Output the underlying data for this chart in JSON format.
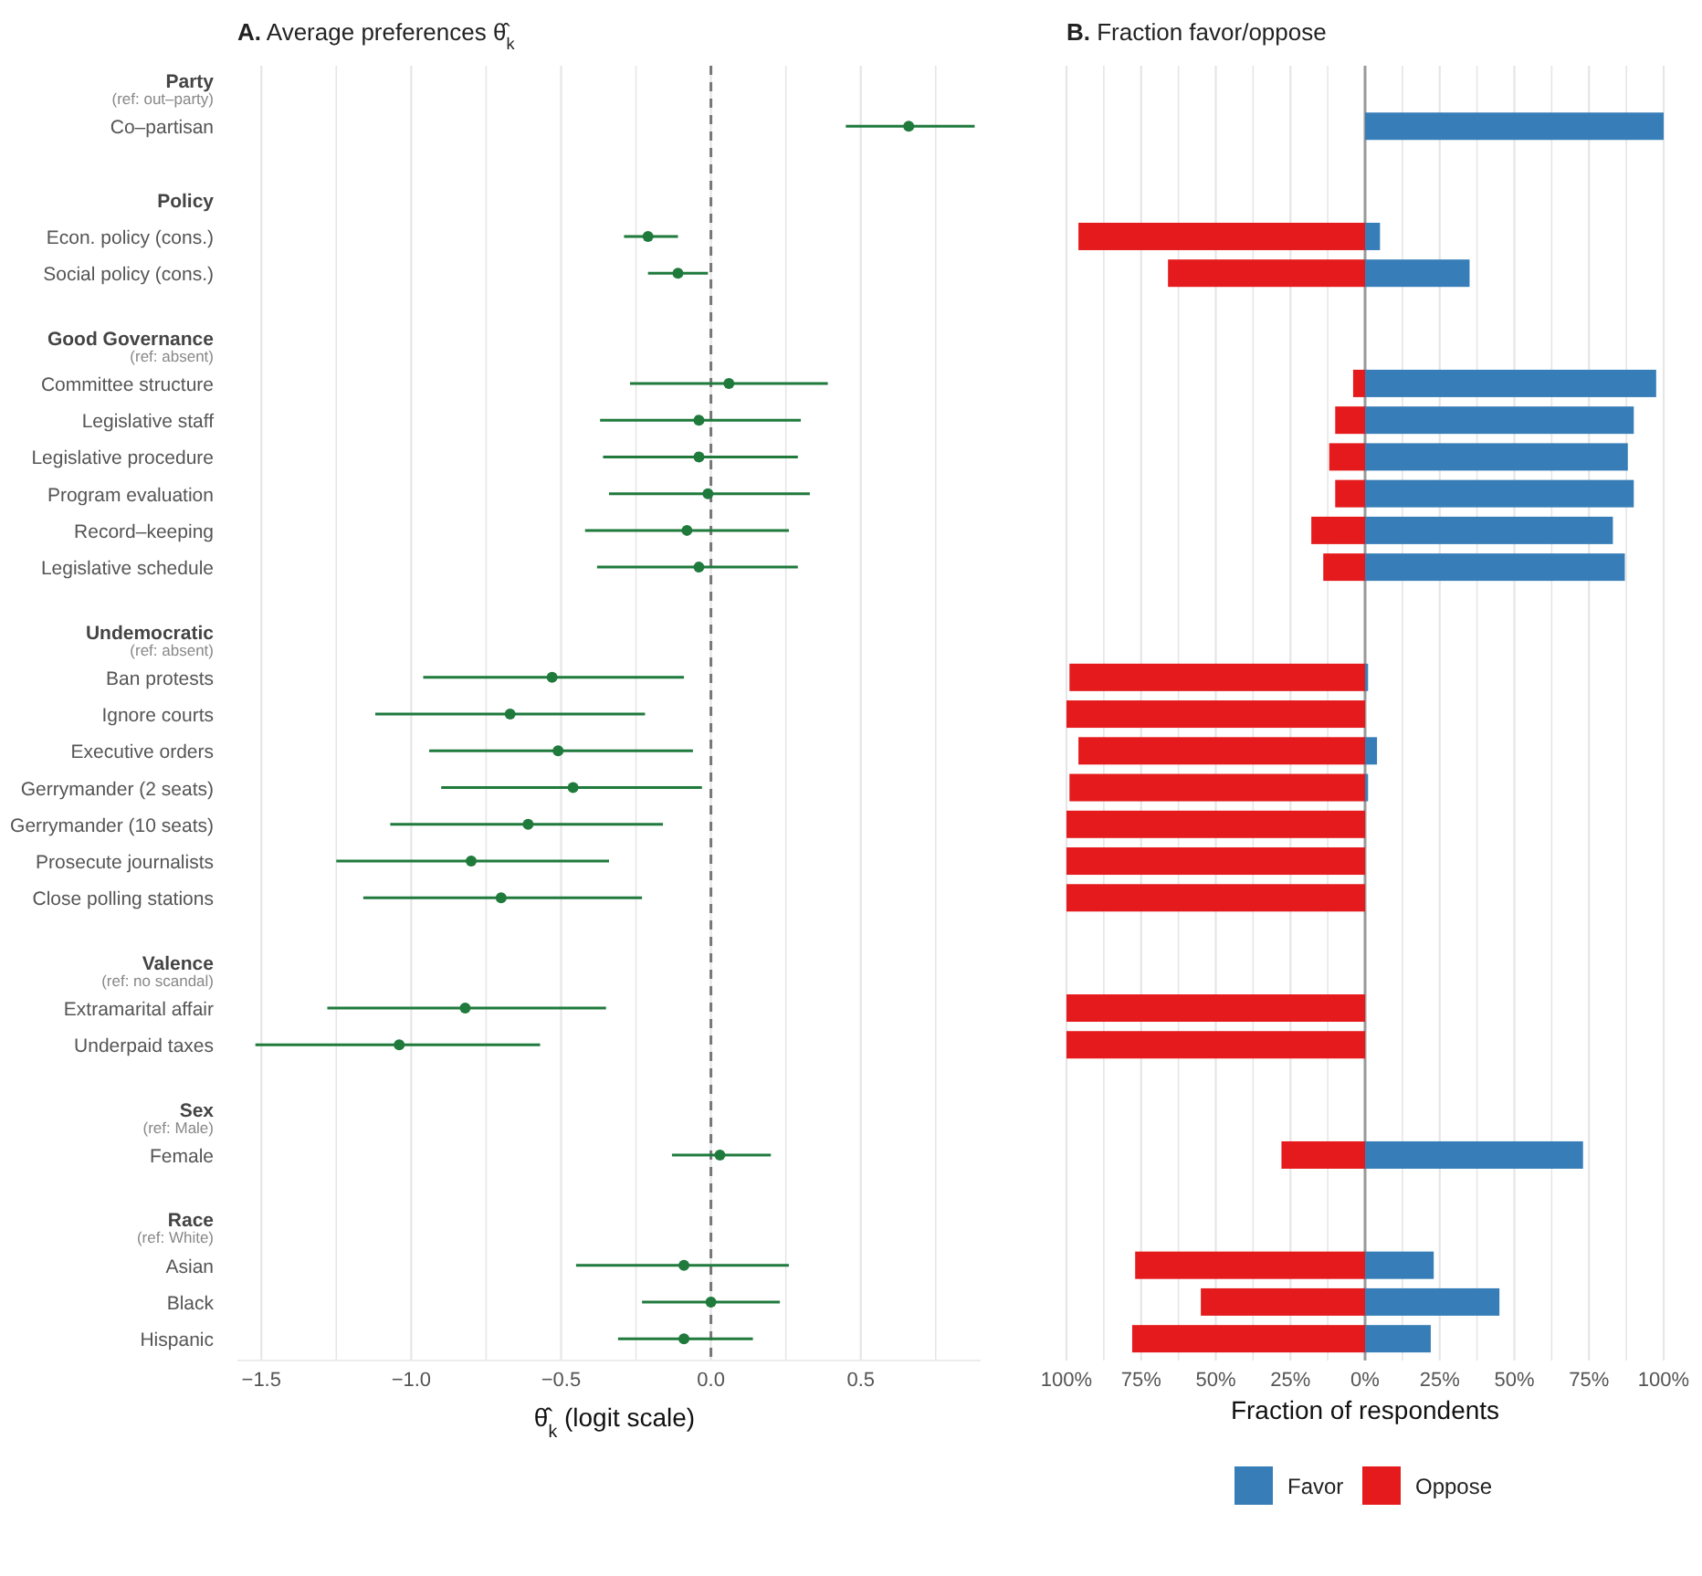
{
  "chart_data": [
    {
      "type": "scatter",
      "orientation": "horizontal",
      "title": "A. Average preferences θ̂$_{k}$",
      "xlabel": "θ̂$_{k}$ (logit scale)",
      "categories": [
        "Party\n(ref: out–party)",
        "Co–partisan",
        null,
        "Policy",
        "Econ. policy (cons.)",
        "Social policy (cons.)",
        null,
        "Good Governance\n(ref: absent)",
        "Committee structure",
        "Legislative staff",
        "Legislative procedure",
        "Program evaluation",
        "Record–keeping",
        "Legislative schedule",
        null,
        "Undemocratic\n(ref: absent)",
        "Ban protests",
        "Ignore courts",
        "Executive orders",
        "Gerrymander (2 seats)",
        "Gerrymander (10 seats)",
        "Prosecute journalists",
        "Close polling stations",
        null,
        "Valence\n(ref: no scandal)",
        "Extramarital affair",
        "Underpaid taxes",
        null,
        "Sex\n(ref: Male)",
        "Female",
        null,
        "Race\n(ref: White)",
        "Asian",
        "Black",
        "Hispanic"
      ],
      "series": [
        {
          "color": "#1f7a3c",
          "values": [
            null,
            0.66,
            null,
            null,
            -0.21,
            -0.11,
            null,
            null,
            0.06,
            -0.04,
            -0.04,
            -0.01,
            -0.08,
            -0.04,
            null,
            null,
            -0.53,
            -0.67,
            -0.51,
            -0.46,
            -0.61,
            -0.8,
            -0.7,
            null,
            null,
            -0.82,
            -1.04,
            null,
            null,
            0.03,
            null,
            null,
            -0.09,
            0.0,
            -0.09
          ],
          "errors": [
            null,
            [
              0.45,
              0.88
            ],
            null,
            null,
            [
              -0.29,
              -0.11
            ],
            [
              -0.21,
              -0.01
            ],
            null,
            null,
            [
              -0.27,
              0.39
            ],
            [
              -0.37,
              0.3
            ],
            [
              -0.36,
              0.29
            ],
            [
              -0.34,
              0.33
            ],
            [
              -0.42,
              0.26
            ],
            [
              -0.38,
              0.29
            ],
            null,
            null,
            [
              -0.96,
              -0.09
            ],
            [
              -1.12,
              -0.22
            ],
            [
              -0.94,
              -0.06
            ],
            [
              -0.9,
              -0.03
            ],
            [
              -1.07,
              -0.16
            ],
            [
              -1.25,
              -0.34
            ],
            [
              -1.16,
              -0.23
            ],
            null,
            null,
            [
              -1.28,
              -0.35
            ],
            [
              -1.52,
              -0.57
            ],
            null,
            null,
            [
              -0.13,
              0.2
            ],
            null,
            null,
            [
              -0.45,
              0.26
            ],
            [
              -0.23,
              0.23
            ],
            [
              -0.31,
              0.14
            ]
          ]
        }
      ],
      "xlim": [
        -1.58,
        0.9
      ],
      "xticks": [
        {
          "value": -1.5,
          "label": "−1.5"
        },
        {
          "value": -1.25,
          "label": null
        },
        {
          "value": -1,
          "label": "−1.0"
        },
        {
          "value": -0.75,
          "label": null
        },
        {
          "value": -0.5,
          "label": "−0.5"
        },
        {
          "value": -0.25,
          "label": null
        },
        {
          "value": 0,
          "label": "0.0"
        },
        {
          "value": 0.25,
          "label": null
        },
        {
          "value": 0.5,
          "label": "0.5"
        },
        {
          "value": 0.75,
          "label": null
        }
      ],
      "ref_lines": [
        {
          "axis": "x",
          "value": 0,
          "color": "#777777",
          "line_style": "dashed"
        }
      ],
      "grid": "x",
      "marker": "circle",
      "legend": false
    },
    {
      "type": "bar",
      "orientation": "horizontal",
      "stacked": true,
      "title": "B. Fraction favor/oppose",
      "xlabel": "Fraction of respondents",
      "categories": [
        null,
        null,
        null,
        null,
        null,
        null,
        null,
        null,
        null,
        null,
        null,
        null,
        null,
        null,
        null,
        null,
        null,
        null,
        null,
        null,
        null,
        null,
        null,
        null,
        null,
        null,
        null,
        null,
        null,
        null,
        null,
        null,
        null,
        null,
        null
      ],
      "series": [
        {
          "name": "Favor",
          "color": "#377eb8",
          "values": [
            null,
            100,
            null,
            null,
            5,
            35,
            null,
            null,
            97.5,
            90,
            88,
            90,
            83,
            87,
            null,
            null,
            1,
            0,
            4,
            1,
            0,
            0,
            0,
            null,
            null,
            0,
            0,
            null,
            null,
            73,
            null,
            null,
            23,
            45,
            22
          ]
        },
        {
          "name": "Oppose",
          "color": "#e41a1c",
          "values": [
            null,
            0,
            null,
            null,
            -96,
            -66,
            null,
            null,
            -4,
            -10,
            -12,
            -10,
            -18,
            -14,
            null,
            null,
            -99,
            -100,
            -96,
            -99,
            -100,
            -100,
            -100,
            null,
            null,
            -100,
            -100,
            null,
            null,
            -28,
            null,
            null,
            -77,
            -55,
            -78
          ]
        }
      ],
      "xlim": [
        -100,
        100
      ],
      "xticks": [
        {
          "value": -100,
          "label": "100%"
        },
        {
          "value": -87.5,
          "label": null
        },
        {
          "value": -75,
          "label": "75%"
        },
        {
          "value": -62.5,
          "label": null
        },
        {
          "value": -50,
          "label": "50%"
        },
        {
          "value": -37.5,
          "label": null
        },
        {
          "value": -25,
          "label": "25%"
        },
        {
          "value": -12.5,
          "label": null
        },
        {
          "value": 0,
          "label": "0%"
        },
        {
          "value": 12.5,
          "label": null
        },
        {
          "value": 25,
          "label": "25%"
        },
        {
          "value": 37.5,
          "label": null
        },
        {
          "value": 50,
          "label": "50%"
        },
        {
          "value": 62.5,
          "label": null
        },
        {
          "value": 75,
          "label": "75%"
        },
        {
          "value": 87.5,
          "label": null
        },
        {
          "value": 100,
          "label": "100%"
        }
      ],
      "ref_lines": [
        {
          "axis": "x",
          "value": 0,
          "color": "#999999",
          "line_style": "solid"
        }
      ],
      "grid": "x",
      "legend": "bottom",
      "tick_labels": "x"
    }
  ]
}
